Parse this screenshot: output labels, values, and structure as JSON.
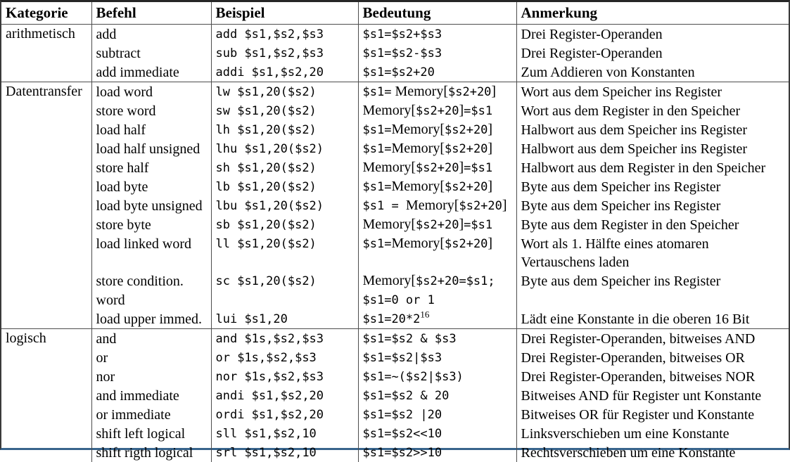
{
  "colors": {
    "background": "#ffffff",
    "text": "#000000",
    "grid_line": "#4d4d4d",
    "top_border": "#262626",
    "side_border": "#3a3a3a",
    "bottom_border": "#38648c"
  },
  "table": {
    "columns": [
      {
        "label": "Kategorie"
      },
      {
        "label": "Befehl"
      },
      {
        "label": "Beispiel"
      },
      {
        "label": "Bedeutung"
      },
      {
        "label": "Anmerkung"
      }
    ],
    "sections": [
      {
        "category": "arithmetisch",
        "lines": [
          {
            "befehl": "add",
            "beispiel": "add $s1,$s2,$s3",
            "bedeutung": [
              {
                "t": "$s1=$s2+$s3",
                "f": "m"
              }
            ],
            "anmerkung": "Drei Register-Operanden"
          },
          {
            "befehl": "subtract",
            "beispiel": "sub $s1,$s2,$s3",
            "bedeutung": [
              {
                "t": "$s1=$s2-$s3",
                "f": "m"
              }
            ],
            "anmerkung": "Drei Register-Operanden"
          },
          {
            "befehl": "add immediate",
            "beispiel": "addi $s1,$s2,20",
            "bedeutung": [
              {
                "t": "$s1=$s2+20",
                "f": "m"
              }
            ],
            "anmerkung": "Zum Addieren von Konstanten"
          }
        ]
      },
      {
        "category": "Datentransfer",
        "lines": [
          {
            "befehl": "load word",
            "beispiel": "lw $s1,20($s2)",
            "bedeutung": [
              {
                "t": "$s1=",
                "f": "m"
              },
              {
                "t": " Memory[",
                "f": "s"
              },
              {
                "t": "$s2+20",
                "f": "m"
              },
              {
                "t": "]",
                "f": "s"
              }
            ],
            "anmerkung": "Wort aus dem Speicher ins Register"
          },
          {
            "befehl": "store word",
            "beispiel": "sw $s1,20($s2)",
            "bedeutung": [
              {
                "t": "Memory[",
                "f": "s"
              },
              {
                "t": "$s2+20",
                "f": "m"
              },
              {
                "t": "]",
                "f": "s"
              },
              {
                "t": "=$s1",
                "f": "m"
              }
            ],
            "anmerkung": "Wort aus dem Register in den Speicher"
          },
          {
            "befehl": "load half",
            "beispiel": "lh $s1,20($s2)",
            "bedeutung": [
              {
                "t": "$s1=",
                "f": "m"
              },
              {
                "t": "Memory[",
                "f": "s"
              },
              {
                "t": "$s2+20",
                "f": "m"
              },
              {
                "t": "]",
                "f": "s"
              }
            ],
            "anmerkung": "Halbwort aus dem Speicher ins Register"
          },
          {
            "befehl": "load half unsigned",
            "beispiel": "lhu $s1,20($s2)",
            "bedeutung": [
              {
                "t": "$s1=",
                "f": "m"
              },
              {
                "t": "Memory[",
                "f": "s"
              },
              {
                "t": "$s2+20",
                "f": "m"
              },
              {
                "t": "]",
                "f": "s"
              }
            ],
            "anmerkung": "Halbwort aus dem Speicher ins Register"
          },
          {
            "befehl": "store half",
            "beispiel": "sh $s1,20($s2)",
            "bedeutung": [
              {
                "t": "Memory[",
                "f": "s"
              },
              {
                "t": "$s2+20",
                "f": "m"
              },
              {
                "t": "]",
                "f": "s"
              },
              {
                "t": "=$s1",
                "f": "m"
              }
            ],
            "anmerkung": "Halbwort aus dem Register in den Speicher"
          },
          {
            "befehl": "load byte",
            "beispiel": "lb $s1,20($s2)",
            "bedeutung": [
              {
                "t": "$s1=",
                "f": "m"
              },
              {
                "t": "Memory[",
                "f": "s"
              },
              {
                "t": "$s2+20",
                "f": "m"
              },
              {
                "t": "]",
                "f": "s"
              }
            ],
            "anmerkung": "Byte aus dem Speicher ins Register"
          },
          {
            "befehl": "load byte unsigned",
            "beispiel": "lbu $s1,20($s2)",
            "bedeutung": [
              {
                "t": "$s1 = ",
                "f": "m"
              },
              {
                "t": "Memory[",
                "f": "s"
              },
              {
                "t": "$s2+20",
                "f": "m"
              },
              {
                "t": "]",
                "f": "s"
              }
            ],
            "anmerkung": "Byte aus dem Speicher ins Register"
          },
          {
            "befehl": "store byte",
            "beispiel": "sb $s1,20($s2)",
            "bedeutung": [
              {
                "t": "Memory[",
                "f": "s"
              },
              {
                "t": "$s2+20",
                "f": "m"
              },
              {
                "t": "]",
                "f": "s"
              },
              {
                "t": "=$s1",
                "f": "m"
              }
            ],
            "anmerkung": "Byte aus dem Register in den Speicher"
          },
          {
            "befehl": "load linked word",
            "beispiel": "ll $s1,20($s2)",
            "bedeutung": [
              {
                "t": "$s1=",
                "f": "m"
              },
              {
                "t": "Memory[",
                "f": "s"
              },
              {
                "t": "$s2+20",
                "f": "m"
              },
              {
                "t": "]",
                "f": "s"
              }
            ],
            "anmerkung": "Wort als 1. Hälfte eines atomaren"
          },
          {
            "befehl": "",
            "beispiel": "",
            "bedeutung": [],
            "anmerkung": "Vertauschens laden"
          },
          {
            "befehl": "store condition.",
            "beispiel": "sc $s1,20($s2)",
            "bedeutung": [
              {
                "t": "Memory[",
                "f": "s"
              },
              {
                "t": "$s2+20=$s1;",
                "f": "m"
              }
            ],
            "anmerkung": "Byte aus dem Speicher ins Register"
          },
          {
            "befehl": "word",
            "beispiel": "",
            "bedeutung": [
              {
                "t": "$s1=0 or 1",
                "f": "m"
              }
            ],
            "anmerkung": ""
          },
          {
            "befehl": "load upper immed.",
            "beispiel": "lui $s1,20",
            "bedeutung": [
              {
                "t": "$s1=20*2",
                "f": "m"
              },
              {
                "t": "16",
                "f": "sup"
              }
            ],
            "anmerkung": "Lädt eine Konstante in die oberen 16 Bit"
          }
        ]
      },
      {
        "category": "logisch",
        "lines": [
          {
            "befehl": "and",
            "beispiel": "and $1s,$s2,$s3",
            "bedeutung": [
              {
                "t": "$s1=$s2 & $s3",
                "f": "m"
              }
            ],
            "anmerkung": "Drei Register-Operanden, bitweises AND"
          },
          {
            "befehl": "or",
            "beispiel": "or $1s,$s2,$s3",
            "bedeutung": [
              {
                "t": "$s1=$s2|$s3",
                "f": "m"
              }
            ],
            "anmerkung": "Drei Register-Operanden, bitweises OR"
          },
          {
            "befehl": "nor",
            "beispiel": "nor $1s,$s2,$s3",
            "bedeutung": [
              {
                "t": "$s1=~($s2|$s3)",
                "f": "m"
              }
            ],
            "anmerkung": "Drei Register-Operanden, bitweises NOR"
          },
          {
            "befehl": "and immediate",
            "beispiel": "andi $s1,$s2,20",
            "bedeutung": [
              {
                "t": "$s1=$s2 & 20",
                "f": "m"
              }
            ],
            "anmerkung": "Bitweises AND für Register unt Konstante"
          },
          {
            "befehl": "or immediate",
            "beispiel": "ordi $s1,$s2,20",
            "bedeutung": [
              {
                "t": "$s1=$s2 |20",
                "f": "m"
              }
            ],
            "anmerkung": "Bitweises OR für Register und Konstante"
          },
          {
            "befehl": "shift left logical",
            "beispiel": "sll $s1,$s2,10",
            "bedeutung": [
              {
                "t": "$s1=$s2<<10",
                "f": "m"
              }
            ],
            "anmerkung": "Linksverschieben um eine Konstante"
          },
          {
            "befehl": "shift rigth logical",
            "beispiel": "srl $s1,$s2,10",
            "bedeutung": [
              {
                "t": "$s1=$s2>>10",
                "f": "m"
              }
            ],
            "anmerkung": "Rechtsverschieben um eine Konstante"
          }
        ]
      }
    ]
  }
}
